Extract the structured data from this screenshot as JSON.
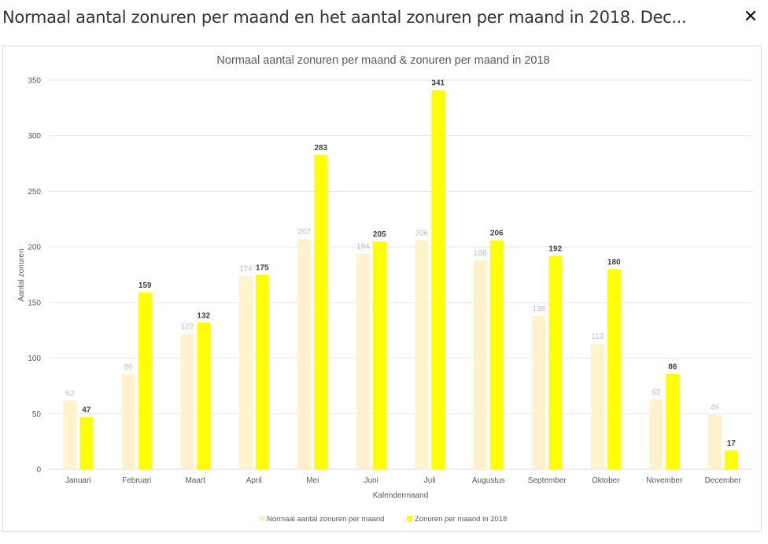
{
  "header": {
    "title": "Normaal aantal zonuren per maand en het aantal zonuren per maand in 2018. Dec...",
    "close_icon": "close-icon",
    "close_glyph": "✕"
  },
  "colors": {
    "normal": "#fff2cc",
    "year2018": "#ffff00",
    "grid": "#e6e6e6",
    "label_normal": "#bfbfbf",
    "label_2018": "#404040"
  },
  "chart_data": {
    "type": "bar",
    "title": "Normaal aantal zonuren per maand & zonuren per maand in 2018",
    "xlabel": "Kalendermaand",
    "ylabel": "Aantal zonuren",
    "ylim": [
      0,
      350
    ],
    "yticks": [
      0,
      50,
      100,
      150,
      200,
      250,
      300,
      350
    ],
    "grid": true,
    "legend_position": "bottom",
    "categories": [
      "Januari",
      "Februari",
      "Maart",
      "April",
      "Mei",
      "Juni",
      "Juli",
      "Augustus",
      "September",
      "Oktober",
      "November",
      "December"
    ],
    "series": [
      {
        "name": "Normaal aantal zonuren per maand",
        "color": "#fff2cc",
        "values": [
          62,
          86,
          122,
          174,
          207,
          194,
          206,
          188,
          138,
          113,
          63,
          49
        ]
      },
      {
        "name": "Zonuren per maand in 2018",
        "color": "#ffff00",
        "values": [
          47,
          159,
          132,
          175,
          283,
          205,
          341,
          206,
          192,
          180,
          86,
          17
        ]
      }
    ]
  }
}
